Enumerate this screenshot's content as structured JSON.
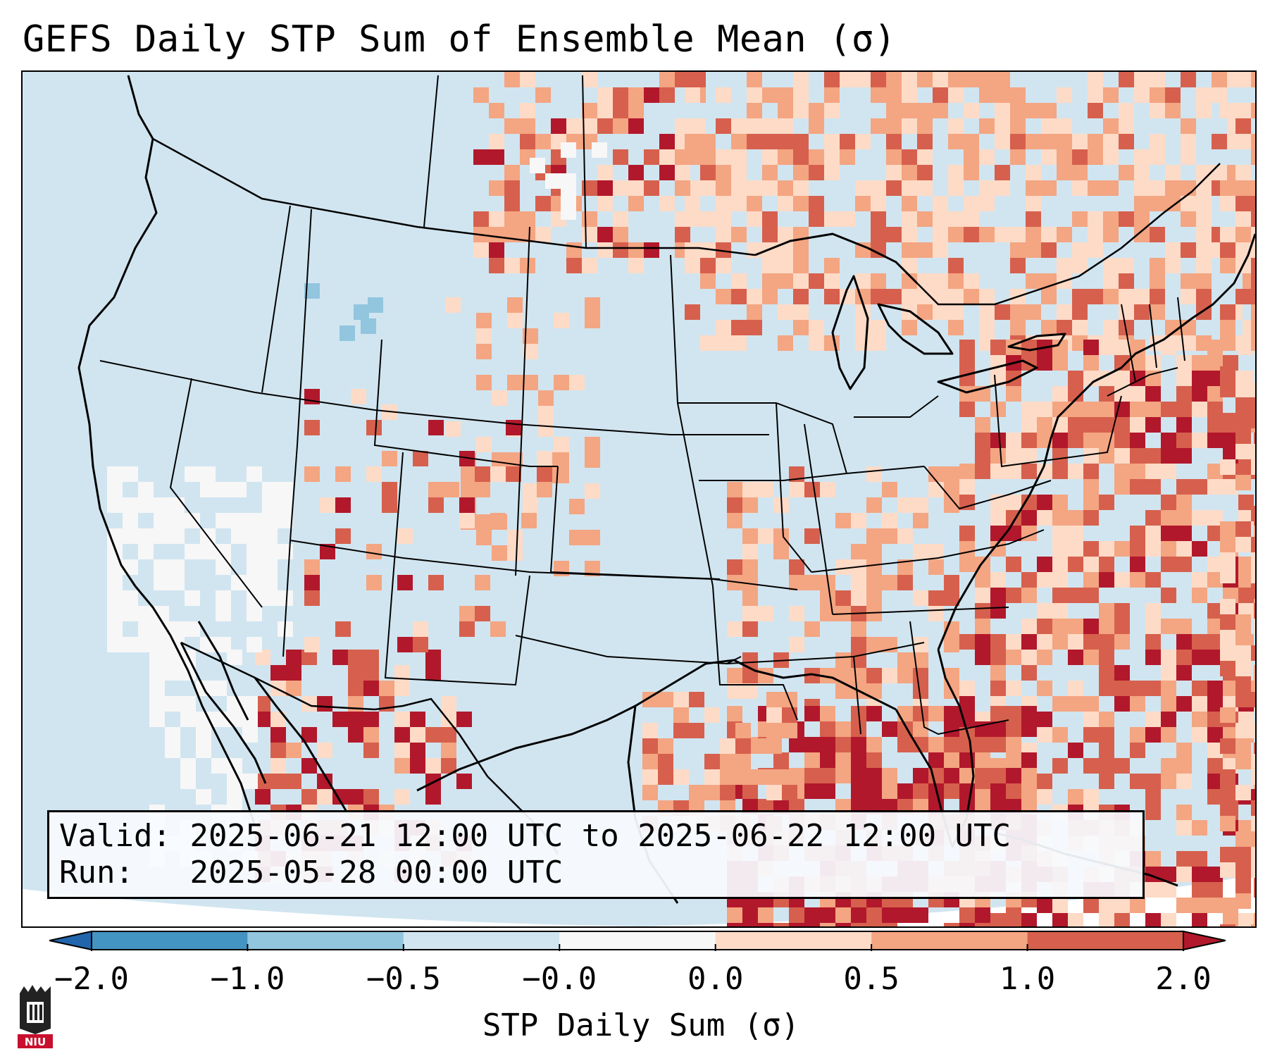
{
  "title": "GEFS Daily STP Sum of Ensemble Mean (σ)",
  "info": {
    "valid_label": "Valid:",
    "valid_value": "2025-06-21 12:00 UTC to 2025-06-22 12:00 UTC",
    "run_label": "Run:",
    "run_value": "2025-05-28 00:00 UTC"
  },
  "colorbar": {
    "label": "STP Daily Sum (σ)",
    "ticks": [
      "−2.0",
      "−1.0",
      "−0.5",
      "−0.0",
      "0.0",
      "0.5",
      "1.0",
      "2.0"
    ],
    "colors": [
      "#4393c3",
      "#92c5de",
      "#d1e5f0",
      "#f7f7f7",
      "#fddbc7",
      "#f4a582",
      "#d6604d",
      "#b2182b"
    ],
    "extend_low_color": "#2166ac",
    "extend_high_color": "#b2182b"
  },
  "logo": {
    "text": "NIU",
    "name": "niu-logo-icon"
  },
  "map": {
    "background_color": "#d1e5f0",
    "land_color": "#d1e5f0",
    "boundary_color": "#000000"
  }
}
